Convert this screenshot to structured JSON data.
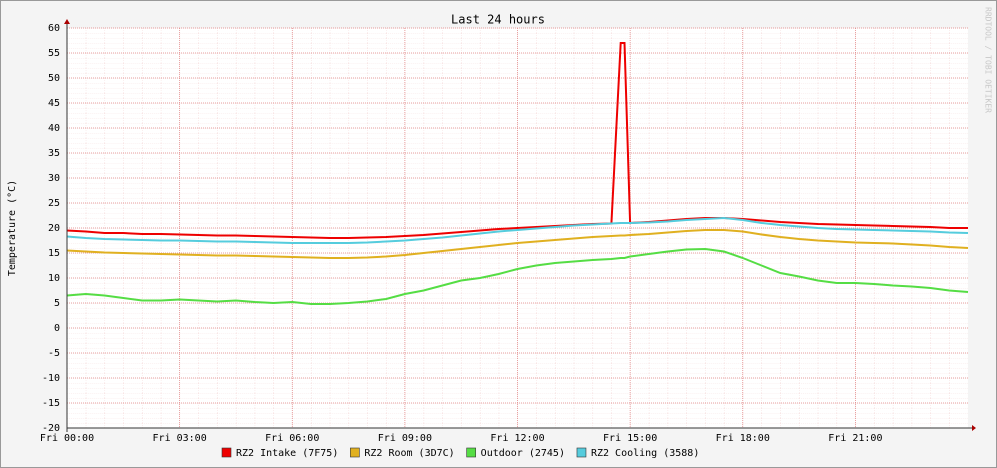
{
  "chart_data": {
    "type": "line",
    "title": "Last 24 hours",
    "y_label": "Temperature (°C)",
    "watermark": "RRDTOOL / TOBI OETIKER",
    "x": [
      0,
      0.5,
      1,
      1.5,
      2,
      2.5,
      3,
      3.5,
      4,
      4.5,
      5,
      5.5,
      6,
      6.5,
      7,
      7.5,
      8,
      8.5,
      9,
      9.5,
      10,
      10.5,
      11,
      11.5,
      12,
      12.5,
      13,
      13.5,
      14,
      14.5,
      14.75,
      14.85,
      15,
      15.5,
      16,
      16.5,
      17,
      17.5,
      18,
      18.5,
      19,
      19.5,
      20,
      20.5,
      21,
      21.5,
      22,
      22.5,
      23,
      23.5,
      24
    ],
    "series": [
      {
        "name": "RZ2 Intake (7F75)",
        "color": "#ee0000",
        "values": [
          19.5,
          19.3,
          19,
          19,
          18.8,
          18.8,
          18.7,
          18.6,
          18.5,
          18.5,
          18.4,
          18.3,
          18.2,
          18.1,
          18,
          18,
          18.1,
          18.2,
          18.4,
          18.6,
          18.9,
          19.2,
          19.5,
          19.8,
          20,
          20.2,
          20.4,
          20.6,
          20.8,
          20.9,
          57,
          57,
          21,
          21.2,
          21.5,
          21.8,
          22,
          22,
          21.8,
          21.5,
          21.2,
          21,
          20.8,
          20.7,
          20.6,
          20.5,
          20.4,
          20.3,
          20.2,
          20,
          20
        ]
      },
      {
        "name": "RZ2 Room (3D7C)",
        "color": "#e0b020",
        "values": [
          15.5,
          15.3,
          15.1,
          15,
          14.9,
          14.8,
          14.7,
          14.6,
          14.5,
          14.5,
          14.4,
          14.3,
          14.2,
          14.1,
          14,
          14,
          14.1,
          14.3,
          14.6,
          15,
          15.4,
          15.8,
          16.2,
          16.6,
          17,
          17.3,
          17.6,
          17.9,
          18.2,
          18.4,
          18.5,
          18.5,
          18.6,
          18.8,
          19.1,
          19.4,
          19.6,
          19.6,
          19.3,
          18.7,
          18.2,
          17.8,
          17.5,
          17.3,
          17.1,
          17,
          16.9,
          16.7,
          16.5,
          16.2,
          16
        ]
      },
      {
        "name": "Outdoor (2745)",
        "color": "#55dd44",
        "values": [
          6.5,
          6.8,
          6.5,
          6,
          5.5,
          5.5,
          5.7,
          5.5,
          5.3,
          5.5,
          5.2,
          5,
          5.2,
          4.8,
          4.8,
          5,
          5.3,
          5.8,
          6.8,
          7.5,
          8.5,
          9.5,
          10,
          10.8,
          11.8,
          12.5,
          13,
          13.3,
          13.6,
          13.8,
          14,
          14,
          14.3,
          14.8,
          15.3,
          15.7,
          15.8,
          15.3,
          14,
          12.5,
          11,
          10.3,
          9.5,
          9,
          9,
          8.8,
          8.5,
          8.3,
          8,
          7.5,
          7.2
        ]
      },
      {
        "name": "RZ2 Cooling (3588)",
        "color": "#55ccdd",
        "values": [
          18.3,
          18,
          17.8,
          17.7,
          17.6,
          17.5,
          17.5,
          17.4,
          17.3,
          17.3,
          17.2,
          17.1,
          17,
          17,
          17,
          17,
          17.1,
          17.3,
          17.5,
          17.8,
          18.1,
          18.5,
          18.9,
          19.3,
          19.6,
          19.9,
          20.2,
          20.5,
          20.7,
          20.9,
          21,
          21,
          21,
          21.1,
          21.3,
          21.6,
          21.8,
          22,
          21.6,
          21,
          20.6,
          20.3,
          20,
          19.8,
          19.7,
          19.6,
          19.5,
          19.4,
          19.3,
          19.1,
          19
        ]
      }
    ],
    "xlim": [
      0,
      24
    ],
    "xticks": [
      {
        "value": 0,
        "label": "Fri 00:00"
      },
      {
        "value": 3,
        "label": "Fri 03:00"
      },
      {
        "value": 6,
        "label": "Fri 06:00"
      },
      {
        "value": 9,
        "label": "Fri 09:00"
      },
      {
        "value": 12,
        "label": "Fri 12:00"
      },
      {
        "value": 15,
        "label": "Fri 15:00"
      },
      {
        "value": 18,
        "label": "Fri 18:00"
      },
      {
        "value": 21,
        "label": "Fri 21:00"
      }
    ],
    "ylim": [
      -20,
      60
    ],
    "yticks": [
      -20,
      -15,
      -10,
      -5,
      0,
      5,
      10,
      15,
      20,
      25,
      30,
      35,
      40,
      45,
      50,
      55,
      60
    ],
    "grid": true
  }
}
